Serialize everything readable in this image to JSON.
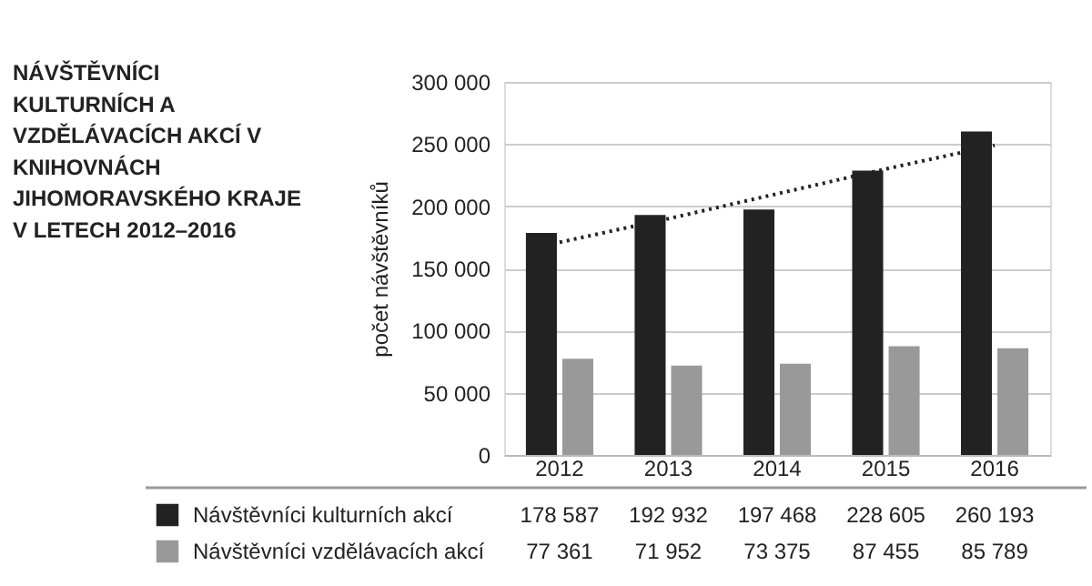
{
  "chart_data": {
    "type": "bar",
    "title": "NÁVŠTĚVNÍCI KULTURNÍCH A VZDĚLÁVACÍCH AKCÍ V KNIHOVNÁCH JIHOMORAVSKÉHO KRAJE V LETECH 2012–2016",
    "ylabel": "počet návštěvníků",
    "categories": [
      "2012",
      "2013",
      "2014",
      "2015",
      "2016"
    ],
    "series": [
      {
        "name": "Návštěvníci kulturních akcí",
        "color": "#222222",
        "values": [
          178587,
          192932,
          197468,
          228605,
          260193
        ],
        "value_labels": [
          "178 587",
          "192 932",
          "197 468",
          "228 605",
          "260 193"
        ]
      },
      {
        "name": "Návštěvníci vzdělávacích akcí",
        "color": "#999999",
        "values": [
          77361,
          71952,
          73375,
          87455,
          85789
        ],
        "value_labels": [
          "77 361",
          "71 952",
          "73 375",
          "87 455",
          "85 789"
        ]
      },
      {
        "type": "line",
        "line_style": "dotted",
        "color": "#222222",
        "values": [
          171000,
          190000,
          210000,
          230000,
          249000
        ]
      }
    ],
    "ylim": [
      0,
      300000
    ],
    "yticks": [
      0,
      50000,
      100000,
      150000,
      200000,
      250000,
      300000
    ],
    "grid": "y",
    "legend": "bottom"
  }
}
